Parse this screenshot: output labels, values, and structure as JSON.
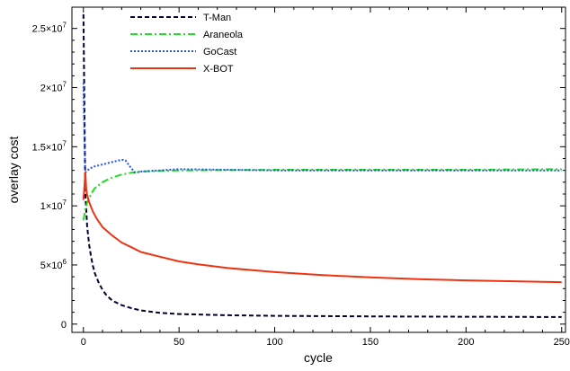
{
  "chart_data": {
    "type": "line",
    "title": "",
    "xlabel": "cycle",
    "ylabel": "overlay cost",
    "xlim": [
      -6,
      252
    ],
    "ylim": [
      -700000,
      26800000
    ],
    "grid": false,
    "legend_position": "top-left",
    "x_ticks": [
      {
        "value": 0,
        "label": "0"
      },
      {
        "value": 50,
        "label": "50"
      },
      {
        "value": 100,
        "label": "100"
      },
      {
        "value": 150,
        "label": "150"
      },
      {
        "value": 200,
        "label": "200"
      },
      {
        "value": 250,
        "label": "250"
      }
    ],
    "y_ticks": [
      {
        "value": 0,
        "mant": "0",
        "exp": ""
      },
      {
        "value": 5000000,
        "mant": "5×10",
        "exp": "6"
      },
      {
        "value": 10000000,
        "mant": "1×10",
        "exp": "7"
      },
      {
        "value": 15000000,
        "mant": "1.5×10",
        "exp": "7"
      },
      {
        "value": 20000000,
        "mant": "2×10",
        "exp": "7"
      },
      {
        "value": 25000000,
        "mant": "2.5×10",
        "exp": "7"
      }
    ],
    "series": [
      {
        "name": "T-Man",
        "color": "#000033",
        "dash": "5,3",
        "points": [
          [
            0,
            26200000
          ],
          [
            1,
            11000000
          ],
          [
            2,
            8200000
          ],
          [
            3,
            6700000
          ],
          [
            4,
            5700000
          ],
          [
            5,
            4900000
          ],
          [
            6,
            4300000
          ],
          [
            8,
            3500000
          ],
          [
            10,
            2900000
          ],
          [
            12,
            2450000
          ],
          [
            15,
            2000000
          ],
          [
            20,
            1600000
          ],
          [
            25,
            1350000
          ],
          [
            30,
            1150000
          ],
          [
            40,
            950000
          ],
          [
            50,
            850000
          ],
          [
            75,
            750000
          ],
          [
            100,
            700000
          ],
          [
            150,
            650000
          ],
          [
            200,
            620000
          ],
          [
            250,
            600000
          ]
        ]
      },
      {
        "name": "Araneola",
        "color": "#22dd22",
        "dash": "8,3,2,3",
        "points": [
          [
            0,
            8800000
          ],
          [
            1,
            9700000
          ],
          [
            2,
            10300000
          ],
          [
            4,
            11000000
          ],
          [
            6,
            11500000
          ],
          [
            10,
            12000000
          ],
          [
            15,
            12400000
          ],
          [
            20,
            12650000
          ],
          [
            25,
            12800000
          ],
          [
            30,
            12900000
          ],
          [
            40,
            12950000
          ],
          [
            50,
            13000000
          ],
          [
            100,
            13050000
          ],
          [
            150,
            13050000
          ],
          [
            200,
            13050000
          ],
          [
            250,
            13100000
          ]
        ]
      },
      {
        "name": "GoCast",
        "color": "#2255ee",
        "dash": "2,2",
        "points": [
          [
            0,
            20400000
          ],
          [
            0.5,
            16000000
          ],
          [
            1,
            12800000
          ],
          [
            2,
            13000000
          ],
          [
            5,
            13300000
          ],
          [
            10,
            13500000
          ],
          [
            15,
            13700000
          ],
          [
            20,
            13900000
          ],
          [
            22,
            13850000
          ],
          [
            24,
            13400000
          ],
          [
            27,
            12800000
          ],
          [
            30,
            12900000
          ],
          [
            40,
            13000000
          ],
          [
            50,
            13100000
          ],
          [
            100,
            13000000
          ],
          [
            150,
            13000000
          ],
          [
            200,
            13000000
          ],
          [
            250,
            13000000
          ]
        ]
      },
      {
        "name": "X-BOT",
        "color": "#ee3311",
        "dash": "",
        "points": [
          [
            0,
            10500000
          ],
          [
            0.5,
            11500000
          ],
          [
            1,
            12800000
          ],
          [
            1.5,
            11300000
          ],
          [
            2,
            10900000
          ],
          [
            3,
            10300000
          ],
          [
            5,
            9500000
          ],
          [
            7,
            8900000
          ],
          [
            10,
            8200000
          ],
          [
            15,
            7500000
          ],
          [
            20,
            6900000
          ],
          [
            25,
            6500000
          ],
          [
            30,
            6100000
          ],
          [
            40,
            5700000
          ],
          [
            50,
            5300000
          ],
          [
            60,
            5050000
          ],
          [
            75,
            4750000
          ],
          [
            100,
            4400000
          ],
          [
            125,
            4150000
          ],
          [
            150,
            3950000
          ],
          [
            175,
            3800000
          ],
          [
            200,
            3700000
          ],
          [
            225,
            3620000
          ],
          [
            250,
            3550000
          ]
        ]
      }
    ]
  }
}
